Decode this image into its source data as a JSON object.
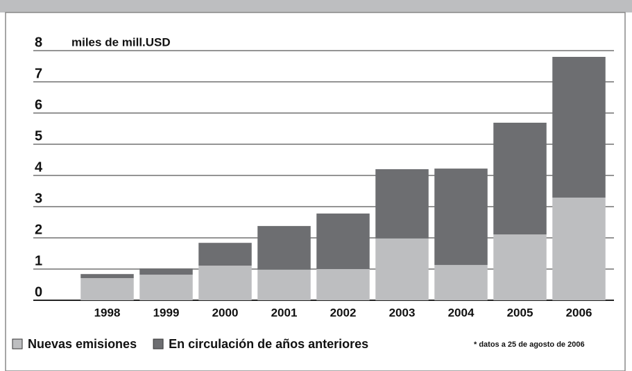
{
  "chart_data": {
    "type": "stacked_bar",
    "unit_label": "miles de mill.USD",
    "footnote": "* datos a 25 de agosto de 2006",
    "categories": [
      "1998",
      "1999",
      "2000",
      "2001",
      "2002",
      "2003",
      "2004",
      "2005",
      "2006"
    ],
    "series": [
      {
        "name": "Nuevas emisiones",
        "color": "#bdbec0",
        "values": [
          0.71,
          0.82,
          1.11,
          0.98,
          1.0,
          1.98,
          1.13,
          2.11,
          3.29
        ]
      },
      {
        "name": "En circulación de años anteriores",
        "color": "#6d6e71",
        "values": [
          0.13,
          0.2,
          0.73,
          1.4,
          1.78,
          2.22,
          3.09,
          3.58,
          4.51
        ]
      }
    ],
    "ylim": [
      0,
      8
    ],
    "yticks": [
      0,
      1,
      2,
      3,
      4,
      5,
      6,
      7,
      8
    ],
    "grid": true
  }
}
